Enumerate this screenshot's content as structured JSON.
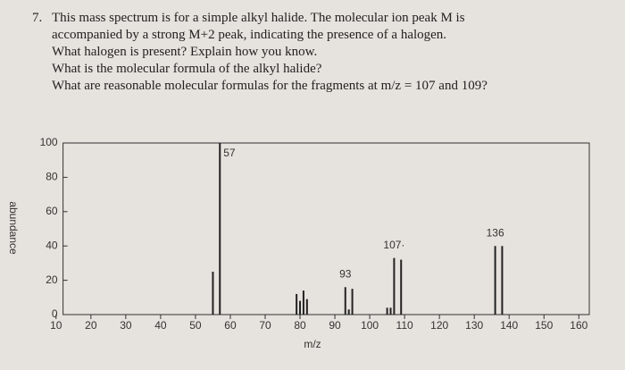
{
  "question": {
    "number": "7.",
    "lines": [
      "This mass spectrum is for a simple alkyl halide. The molecular ion peak M is",
      "accompanied by a strong M+2 peak, indicating the presence of a halogen.",
      "What halogen is present? Explain how you know.",
      "What is the molecular formula of the alkyl halide?",
      "What are reasonable molecular formulas for the fragments at m/z = 107 and 109?"
    ]
  },
  "chart_data": {
    "type": "bar",
    "x_label": "m/z",
    "y_label": "abundance",
    "x": [
      55,
      57,
      79,
      80,
      81,
      82,
      93,
      94,
      95,
      105,
      106,
      107,
      109,
      136,
      138
    ],
    "values": [
      25,
      100,
      12,
      8,
      14,
      9,
      16,
      3,
      15,
      4,
      4,
      33,
      32,
      40,
      40
    ],
    "color": "#222222",
    "annotations": [
      {
        "label": "57",
        "x": 57,
        "y": 100
      },
      {
        "label": "93",
        "x": 93,
        "y": 16
      },
      {
        "label": "107·",
        "x": 107,
        "y": 33
      },
      {
        "label": "136",
        "x": 136,
        "y": 40
      }
    ],
    "xlim": [
      8,
      163
    ],
    "ylim": [
      0,
      100
    ],
    "xticks": [
      10,
      20,
      30,
      40,
      50,
      60,
      70,
      80,
      90,
      100,
      110,
      120,
      130,
      140,
      150,
      160
    ],
    "yticks": [
      0,
      20,
      40,
      60,
      80,
      100
    ]
  }
}
